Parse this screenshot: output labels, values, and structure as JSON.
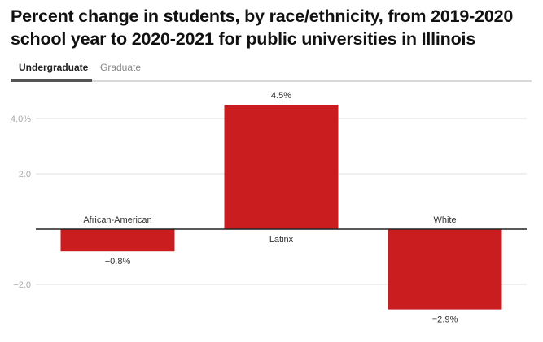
{
  "title": "Percent change in students, by race/ethnicity, from 2019-2020 school year to 2020-2021 for public universities in Illinois",
  "tabs": [
    {
      "label": "Undergraduate",
      "active": true
    },
    {
      "label": "Graduate",
      "active": false
    }
  ],
  "colors": {
    "bar": "#c91d1f",
    "grid": "#e2e2e2",
    "axis": "#222222",
    "tab_active_underline": "#555555"
  },
  "chart_data": {
    "type": "bar",
    "title": "Percent change in students, by race/ethnicity, from 2019-2020 school year to 2020-2021 for public universities in Illinois",
    "categories": [
      "African-American",
      "Latinx",
      "White"
    ],
    "values": [
      -0.8,
      4.5,
      -2.9
    ],
    "value_labels": [
      "−0.8%",
      "4.5%",
      "−2.9%"
    ],
    "xlabel": "",
    "ylabel": "",
    "ylim": [
      -3.5,
      5.0
    ],
    "yticks": [
      {
        "value": 4.0,
        "label": "4.0%"
      },
      {
        "value": 2.0,
        "label": "2.0"
      },
      {
        "value": -2.0,
        "label": "−2.0"
      }
    ],
    "grid": true,
    "legend": "none"
  }
}
